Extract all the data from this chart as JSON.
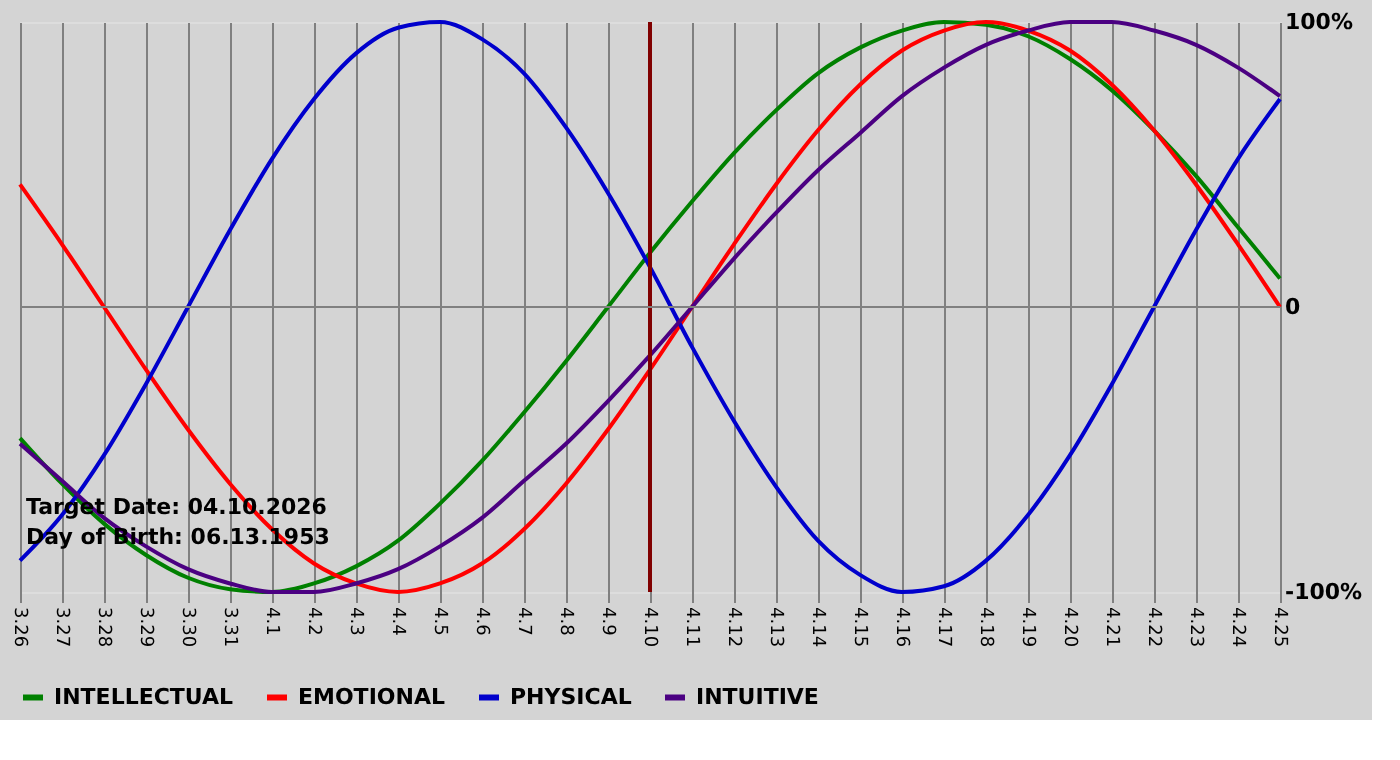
{
  "chart_data": {
    "type": "line",
    "categories": [
      "3.26",
      "3.27",
      "3.28",
      "3.29",
      "3.30",
      "3.31",
      "4.1",
      "4.2",
      "4.3",
      "4.4",
      "4.5",
      "4.6",
      "4.7",
      "4.8",
      "4.9",
      "4.10",
      "4.11",
      "4.12",
      "4.13",
      "4.14",
      "4.15",
      "4.16",
      "4.17",
      "4.18",
      "4.19",
      "4.20",
      "4.21",
      "4.22",
      "4.23",
      "4.24",
      "4.25"
    ],
    "series": [
      {
        "name": "INTELLECTUAL",
        "color": "#008000",
        "values": [
          -46,
          -62,
          -76,
          -87,
          -95,
          -99,
          -100,
          -97,
          -91,
          -82,
          -69,
          -54,
          -37,
          -19,
          0,
          19,
          37,
          54,
          69,
          82,
          91,
          97,
          100,
          99,
          95,
          87,
          76,
          62,
          46,
          28,
          10
        ]
      },
      {
        "name": "EMOTIONAL",
        "color": "#ff0000",
        "values": [
          43,
          22,
          0,
          -22,
          -43,
          -62,
          -78,
          -90,
          -97,
          -100,
          -97,
          -90,
          -78,
          -62,
          -43,
          -22,
          0,
          22,
          43,
          62,
          78,
          90,
          97,
          100,
          97,
          90,
          78,
          62,
          43,
          22,
          0
        ]
      },
      {
        "name": "PHYSICAL",
        "color": "#0000cc",
        "values": [
          -89,
          -73,
          -52,
          -27,
          0,
          27,
          52,
          73,
          89,
          98,
          100,
          94,
          82,
          63,
          40,
          14,
          -14,
          -40,
          -63,
          -82,
          -94,
          -100,
          -98,
          -89,
          -73,
          -52,
          -27,
          0,
          27,
          52,
          73
        ]
      },
      {
        "name": "INTUITIVE",
        "color": "#4b0082",
        "values": [
          -48,
          -61,
          -74,
          -84,
          -92,
          -97,
          -100,
          -100,
          -97,
          -92,
          -84,
          -74,
          -61,
          -48,
          -33,
          -17,
          0,
          17,
          33,
          48,
          61,
          74,
          84,
          92,
          97,
          100,
          100,
          97,
          92,
          84,
          74
        ]
      }
    ],
    "ylim": [
      -100,
      100
    ],
    "yticks": [
      {
        "value": -100,
        "label": "-100%"
      },
      {
        "value": 0,
        "label": "0"
      },
      {
        "value": 100,
        "label": "100%"
      }
    ],
    "ref_lines": [
      {
        "axis": "x",
        "value": "4.10",
        "color": "#800000"
      },
      {
        "axis": "y",
        "value": 0,
        "color": "#808080"
      }
    ],
    "annotations": [
      "Target Date: 04.10.2026",
      "Day of Birth: 06.13.1953"
    ],
    "grid": "x",
    "legend": "bottom",
    "marker": "none",
    "line_style": "solid"
  }
}
